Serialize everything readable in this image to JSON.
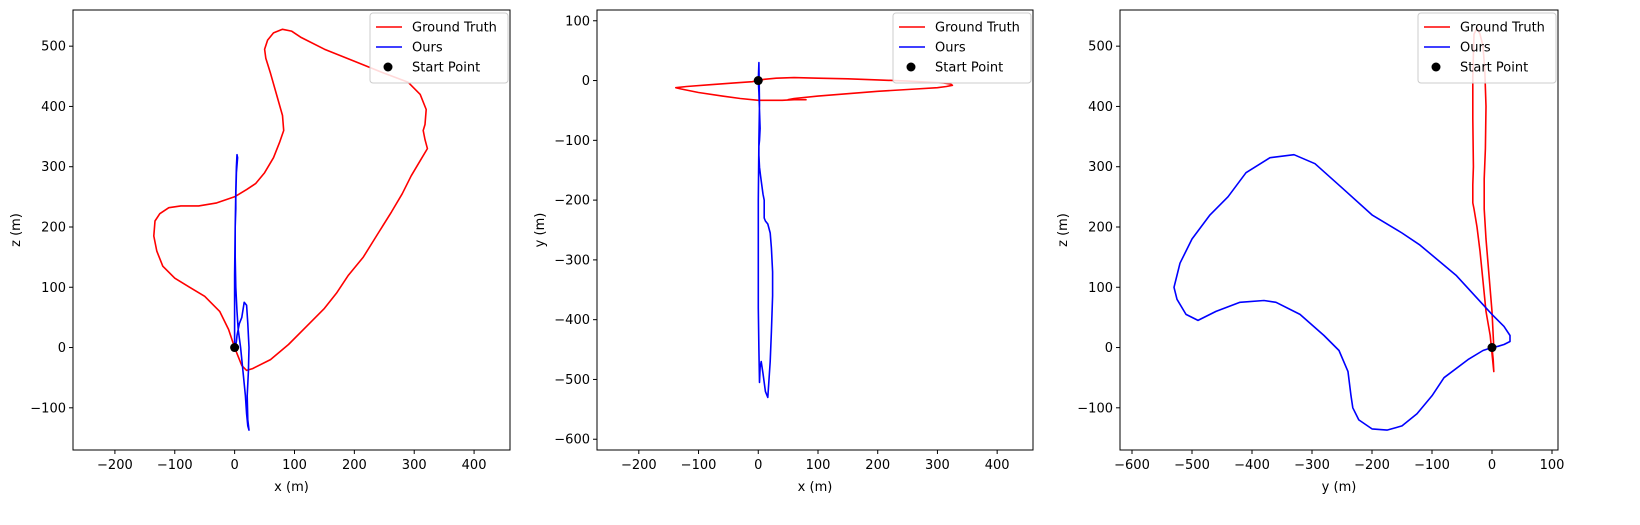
{
  "chart_data": [
    {
      "type": "line",
      "xlabel": "x (m)",
      "ylabel": "z (m)",
      "xlim": [
        -270,
        460
      ],
      "ylim": [
        -170,
        560
      ],
      "xticks": [
        -200,
        -100,
        0,
        100,
        200,
        300,
        400
      ],
      "yticks": [
        -100,
        0,
        100,
        200,
        300,
        400,
        500
      ],
      "legend_position": "top-right",
      "grid": false,
      "series": [
        {
          "name": "Ground Truth",
          "color": "#ff0000",
          "x": [
            0,
            -10,
            -25,
            -50,
            -75,
            -100,
            -120,
            -130,
            -135,
            -133,
            -125,
            -110,
            -90,
            -60,
            -30,
            0,
            20,
            35,
            50,
            65,
            75,
            82,
            80,
            70,
            60,
            52,
            50,
            55,
            65,
            80,
            95,
            110,
            150,
            200,
            250,
            290,
            310,
            320,
            318,
            315,
            318,
            322,
            310,
            295,
            280,
            262,
            240,
            215,
            190,
            170,
            150,
            120,
            90,
            60,
            30,
            20,
            12,
            8,
            4,
            0
          ],
          "y": [
            0,
            30,
            60,
            85,
            100,
            115,
            135,
            160,
            185,
            210,
            222,
            232,
            235,
            235,
            240,
            250,
            262,
            272,
            290,
            315,
            340,
            360,
            385,
            420,
            455,
            480,
            495,
            510,
            522,
            528,
            525,
            515,
            495,
            475,
            455,
            440,
            420,
            395,
            370,
            360,
            345,
            330,
            310,
            285,
            255,
            225,
            190,
            150,
            120,
            90,
            65,
            35,
            5,
            -20,
            -35,
            -38,
            -30,
            -20,
            -10,
            0
          ]
        },
        {
          "name": "Ours",
          "color": "#0000ff",
          "x": [
            0,
            0,
            0,
            1,
            2,
            3,
            4,
            5,
            3,
            2,
            2,
            1,
            1,
            2,
            4,
            6,
            10,
            14,
            18,
            20,
            22,
            24,
            22,
            21,
            23,
            24,
            22,
            20,
            16,
            12,
            8,
            6,
            4,
            3,
            2,
            1,
            0
          ],
          "y": [
            0,
            60,
            120,
            200,
            260,
            300,
            320,
            315,
            290,
            250,
            230,
            200,
            150,
            100,
            60,
            30,
            0,
            -40,
            -80,
            -110,
            -130,
            -137,
            -120,
            -80,
            -40,
            0,
            40,
            70,
            75,
            50,
            40,
            30,
            20,
            10,
            5,
            2,
            0
          ]
        },
        {
          "name": "Start Point",
          "color": "#000000",
          "marker": "circle",
          "x": [
            0
          ],
          "y": [
            0
          ]
        }
      ]
    },
    {
      "type": "line",
      "xlabel": "x (m)",
      "ylabel": "y (m)",
      "xlim": [
        -270,
        460
      ],
      "ylim": [
        -618,
        118
      ],
      "xticks": [
        -200,
        -100,
        0,
        100,
        200,
        300,
        400
      ],
      "yticks": [
        -600,
        -500,
        -400,
        -300,
        -200,
        -100,
        0,
        100
      ],
      "legend_position": "top-right",
      "grid": false,
      "series": [
        {
          "name": "Ground Truth",
          "color": "#ff0000",
          "x": [
            0,
            10,
            30,
            60,
            100,
            150,
            200,
            250,
            290,
            310,
            322,
            325,
            315,
            300,
            250,
            200,
            150,
            100,
            60,
            50,
            80,
            60,
            40,
            20,
            0,
            -30,
            -60,
            -100,
            -130,
            -138,
            -120,
            -80,
            -40,
            -10,
            0
          ],
          "y": [
            0,
            2,
            4,
            5,
            4,
            3,
            1,
            -1,
            -3,
            -4,
            -6,
            -8,
            -10,
            -12,
            -15,
            -18,
            -22,
            -26,
            -30,
            -32,
            -32,
            -32,
            -33,
            -33,
            -33,
            -30,
            -26,
            -20,
            -14,
            -12,
            -10,
            -7,
            -4,
            -2,
            0
          ],
          "x_note": ""
        },
        {
          "name": "Ours",
          "color": "#0000ff",
          "x": [
            0,
            1,
            2,
            3,
            2,
            1,
            1,
            2,
            4,
            6,
            8,
            10,
            10,
            12,
            16,
            20,
            22,
            24,
            24,
            22,
            20,
            18,
            16,
            12,
            8,
            5,
            3,
            2,
            1,
            0,
            0,
            1,
            2,
            1,
            0
          ],
          "y": [
            0,
            -20,
            -50,
            -80,
            -100,
            -110,
            -125,
            -145,
            -160,
            -175,
            -190,
            -200,
            -230,
            -235,
            -240,
            -255,
            -280,
            -320,
            -360,
            -420,
            -470,
            -500,
            -530,
            -520,
            -490,
            -470,
            -480,
            -505,
            -450,
            -380,
            -200,
            -100,
            -40,
            30,
            0
          ]
        },
        {
          "name": "Start Point",
          "color": "#000000",
          "marker": "circle",
          "x": [
            0
          ],
          "y": [
            0
          ]
        }
      ]
    },
    {
      "type": "line",
      "xlabel": "y (m)",
      "ylabel": "z (m)",
      "xlim": [
        -620,
        110
      ],
      "ylim": [
        -170,
        560
      ],
      "xticks": [
        -600,
        -500,
        -400,
        -300,
        -200,
        -100,
        0,
        100
      ],
      "yticks": [
        -100,
        0,
        100,
        200,
        300,
        400,
        500
      ],
      "legend_position": "top-right",
      "grid": false,
      "series": [
        {
          "name": "Ground Truth",
          "color": "#ff0000",
          "x": [
            0,
            2,
            3,
            -3,
            -10,
            -15,
            -20,
            -25,
            -30,
            -32,
            -32,
            -31,
            -32,
            -32,
            -30,
            -25,
            -20,
            -15,
            -12,
            -10,
            -11,
            -13,
            -13,
            -10,
            -5,
            0,
            2,
            3
          ],
          "y": [
            0,
            -20,
            -40,
            20,
            60,
            110,
            160,
            200,
            230,
            240,
            270,
            300,
            380,
            450,
            520,
            530,
            520,
            500,
            460,
            400,
            330,
            280,
            230,
            180,
            120,
            60,
            20,
            0
          ]
        },
        {
          "name": "Ours",
          "color": "#0000ff",
          "x": [
            0,
            -15,
            -40,
            -80,
            -100,
            -125,
            -150,
            -175,
            -200,
            -222,
            -232,
            -235,
            -240,
            -255,
            -280,
            -320,
            -360,
            -380,
            -420,
            -460,
            -480,
            -490,
            -510,
            -525,
            -530,
            -520,
            -500,
            -470,
            -440,
            -410,
            -370,
            -330,
            -295,
            -250,
            -200,
            -150,
            -120,
            -60,
            0,
            20,
            30,
            30,
            20,
            10,
            0
          ],
          "y": [
            0,
            -5,
            -20,
            -50,
            -80,
            -110,
            -130,
            -137,
            -135,
            -120,
            -100,
            -80,
            -40,
            -5,
            20,
            55,
            75,
            78,
            75,
            60,
            50,
            45,
            55,
            80,
            100,
            140,
            180,
            220,
            250,
            290,
            315,
            320,
            305,
            265,
            220,
            190,
            170,
            120,
            55,
            35,
            20,
            10,
            5,
            2,
            0
          ]
        },
        {
          "name": "Start Point",
          "color": "#000000",
          "marker": "circle",
          "x": [
            0
          ],
          "y": [
            0
          ]
        }
      ]
    }
  ]
}
